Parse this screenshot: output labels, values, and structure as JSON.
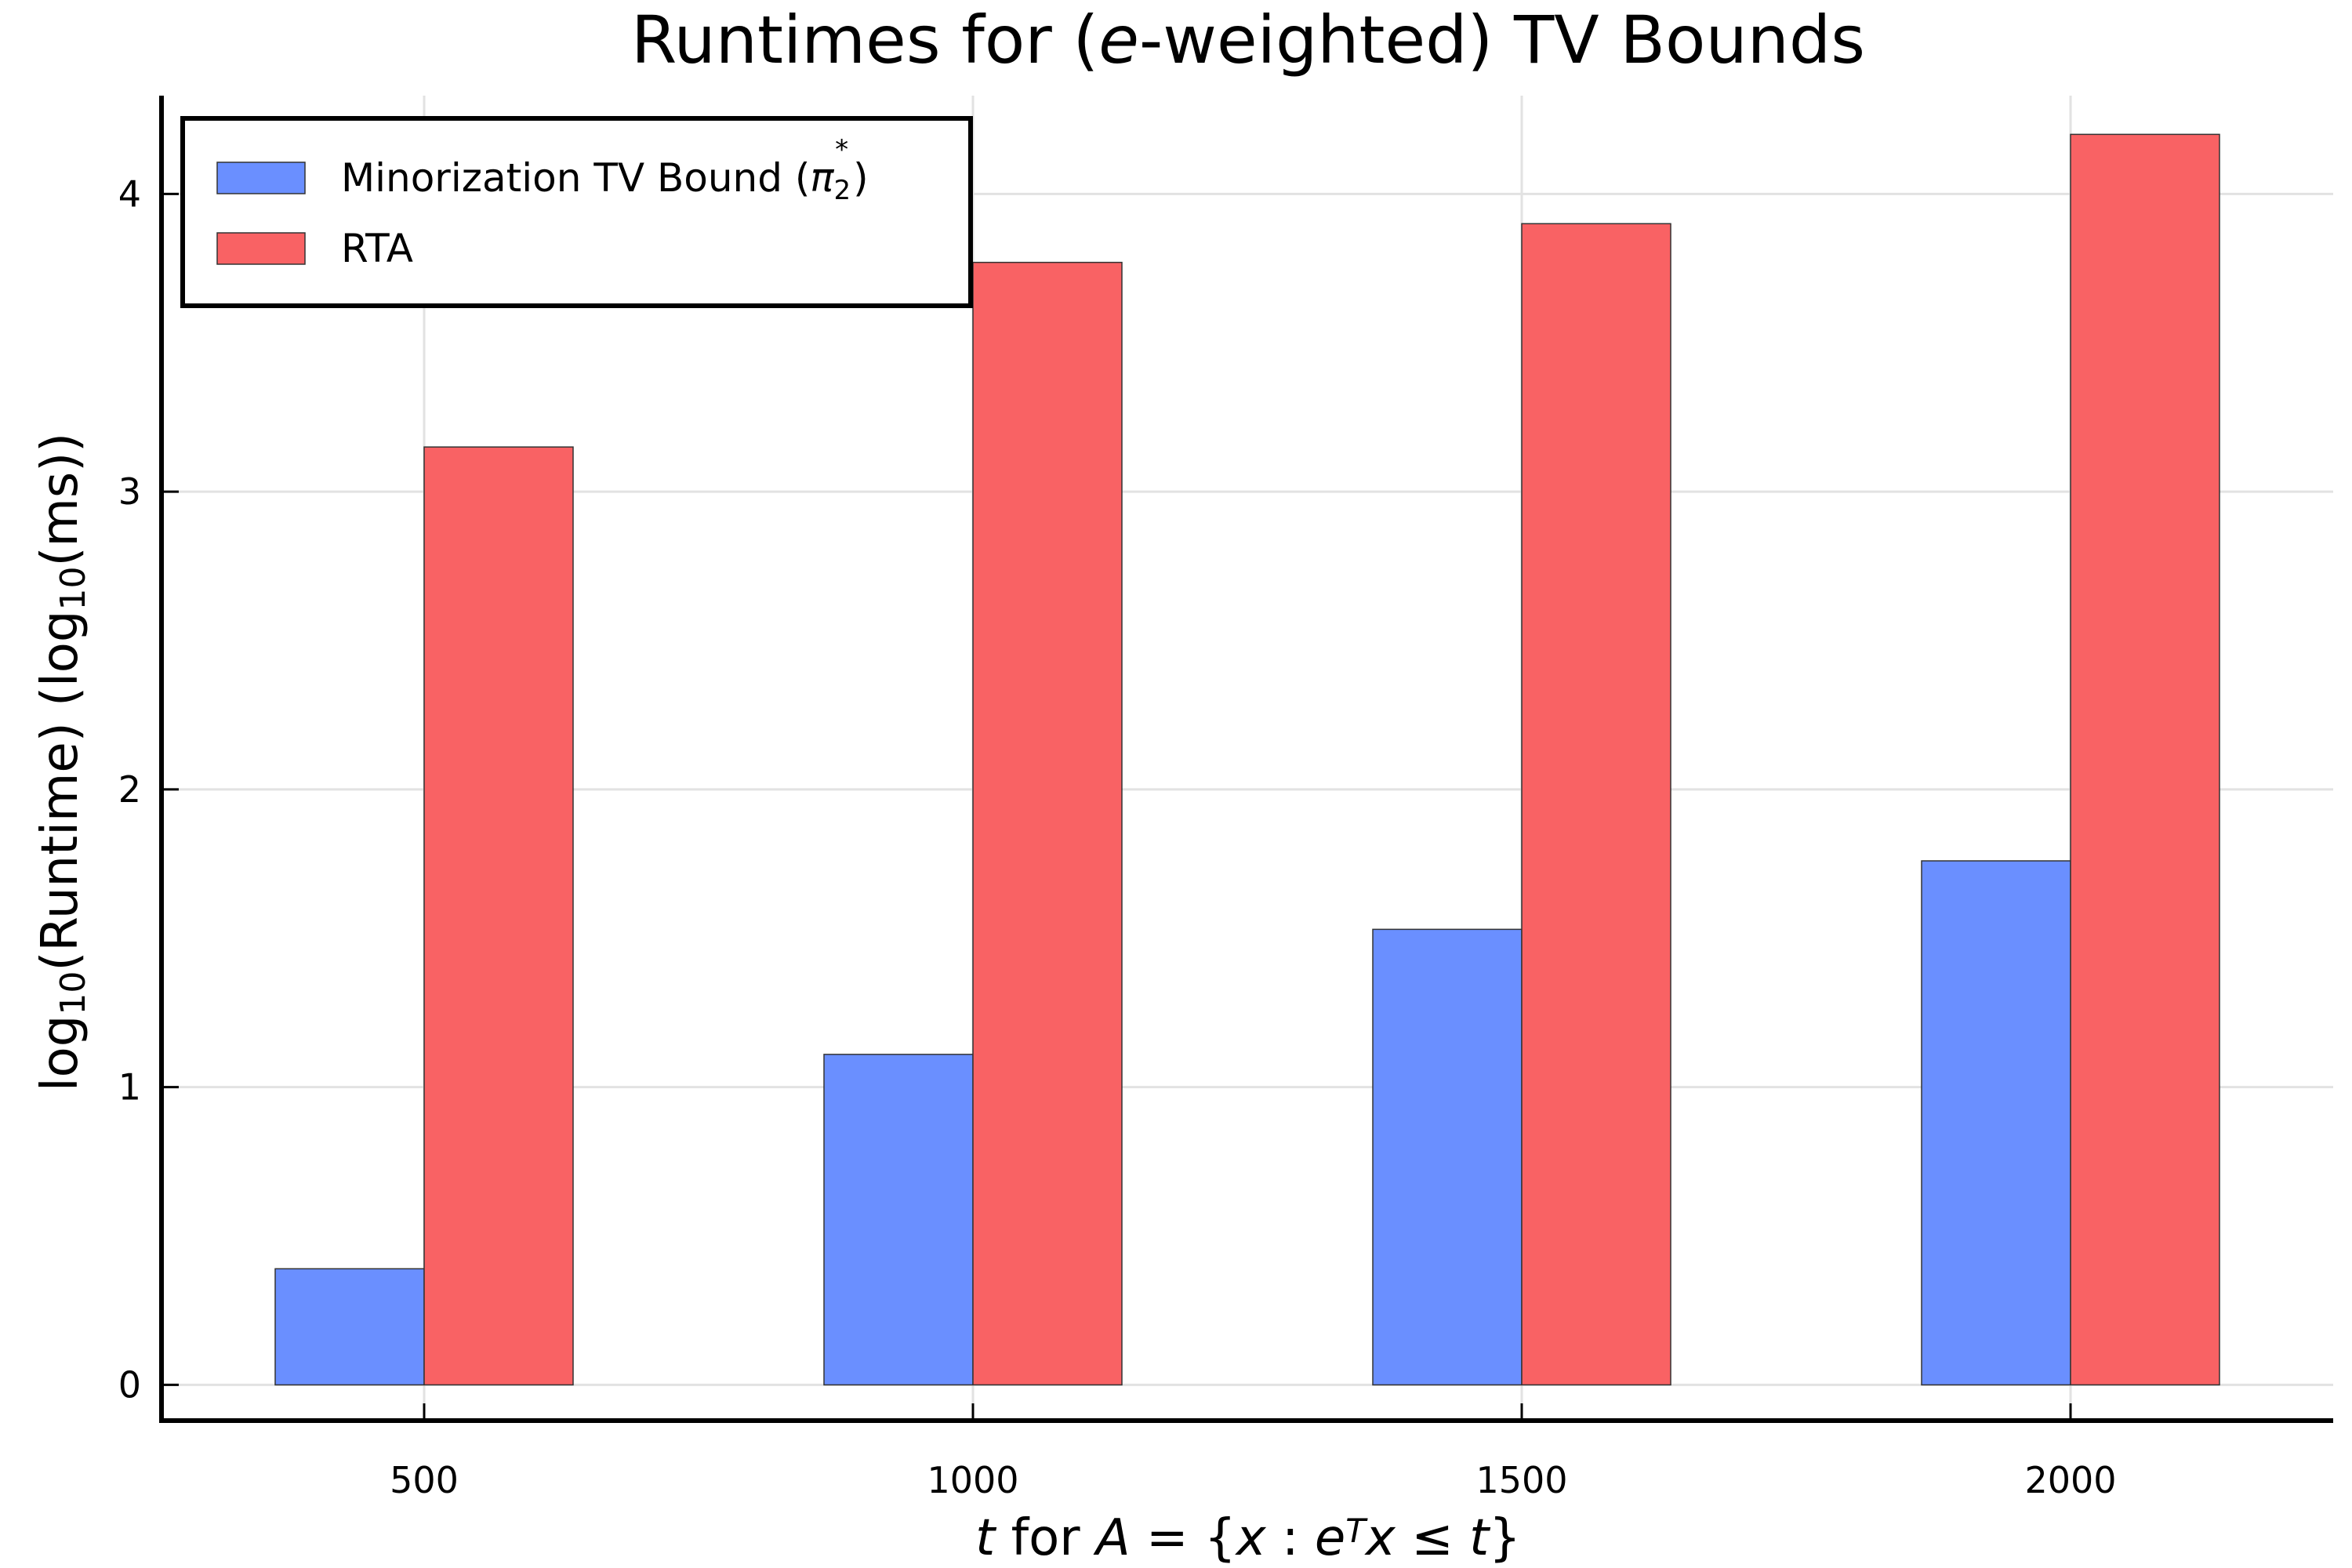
{
  "chart_data": {
    "type": "bar",
    "title": "Runtimes for (e-weighted) TV Bounds",
    "title_parts": {
      "before": "Runtimes for (",
      "italic": "e",
      "after": "-weighted) TV Bounds"
    },
    "xlabel": "t for A = {x : e^T x ≤ t}",
    "xlabel_parts": {
      "t1": "t",
      "for": " for ",
      "A": "A",
      "eq": " = {",
      "x1": "x",
      "colon": " : ",
      "e": "e",
      "T": "T",
      "x2": "x",
      "le": " ≤ ",
      "t2": "t",
      "close": "}"
    },
    "ylabel": "log10(Runtime) (log10(ms))",
    "ylabel_parts": {
      "log1": "log",
      "sub1": "10",
      "mid": "(Runtime)  (log",
      "sub2": "10",
      "end": "(ms))"
    },
    "categories": [
      "500",
      "1000",
      "1500",
      "2000"
    ],
    "series": [
      {
        "name": "Minorization TV Bound (π2*)",
        "name_base": "Minorization TV Bound (",
        "name_pi": "π",
        "name_sub": "2",
        "name_sup": "*",
        "name_end": ")",
        "color": "#6a8fff",
        "values": [
          0.39,
          1.11,
          1.53,
          1.76
        ]
      },
      {
        "name": "RTA",
        "color": "#f96264",
        "values": [
          3.15,
          3.77,
          3.9,
          4.2
        ]
      }
    ],
    "yticks": [
      0,
      1,
      2,
      3,
      4
    ],
    "ylim": [
      -0.12,
      4.33
    ],
    "grid": true,
    "legend_position": "top-left"
  }
}
